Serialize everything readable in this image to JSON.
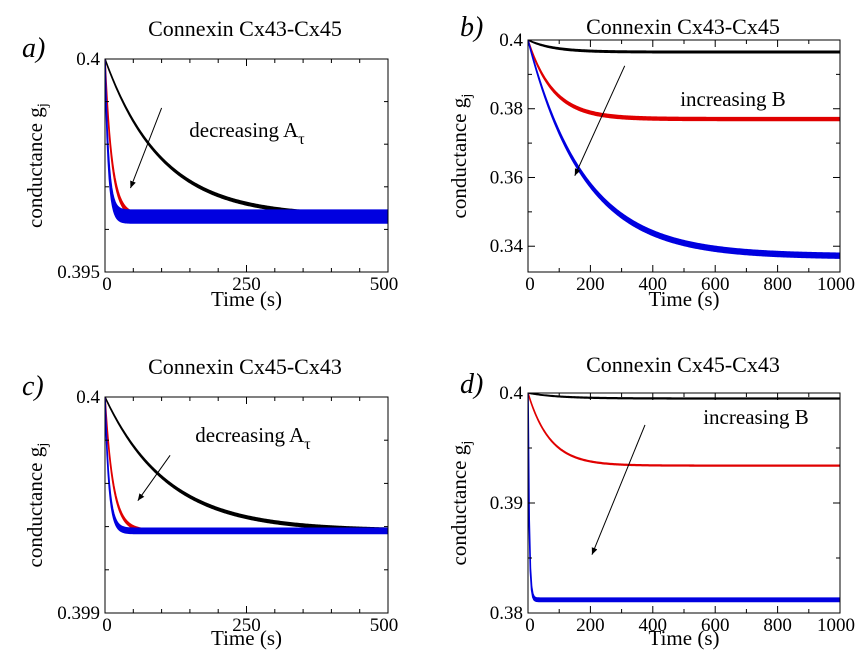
{
  "chart_data": [
    {
      "id": "a",
      "type": "line",
      "panel_label": "a)",
      "title": "Connexin Cx43-Cx45",
      "xlabel": "Time (s)",
      "ylabel": "conductance g",
      "ylabel_sub": "j",
      "xlim": [
        0,
        500
      ],
      "ylim": [
        0.395,
        0.4
      ],
      "xticks": [
        0,
        250,
        500
      ],
      "xtick_labels": [
        "0",
        "250",
        "500"
      ],
      "yticks": [
        0.395,
        0.4
      ],
      "ytick_labels": [
        "0.395",
        "0.4"
      ],
      "annotation": {
        "text": "decreasing A",
        "sub": "τ",
        "arrow_from": [
          100,
          0.39885
        ],
        "arrow_to": [
          45,
          0.39697
        ]
      },
      "series": [
        {
          "color": "#000000",
          "start": 0.4,
          "end": 0.3963,
          "tau": 100,
          "band": 3e-05
        },
        {
          "color": "#e00000",
          "start": 0.4,
          "end": 0.3963,
          "tau": 12,
          "band": 5e-05
        },
        {
          "color": "#0000e0",
          "start": 0.4,
          "end": 0.3963,
          "tau": 6,
          "band": 0.00015
        }
      ]
    },
    {
      "id": "b",
      "type": "line",
      "panel_label": "b)",
      "title": "Connexin Cx43-Cx45",
      "xlabel": "Time (s)",
      "ylabel": "conductance g",
      "ylabel_sub": "j",
      "xlim": [
        0,
        1000
      ],
      "ylim": [
        0.3325,
        0.4
      ],
      "xticks": [
        0,
        200,
        400,
        600,
        800,
        1000
      ],
      "xtick_labels": [
        "0",
        "200",
        "400",
        "600",
        "800",
        "1000"
      ],
      "yticks": [
        0.34,
        0.36,
        0.38,
        0.4
      ],
      "ytick_labels": [
        "0.34",
        "0.36",
        "0.38",
        "0.4"
      ],
      "annotation": {
        "text": "increasing B",
        "arrow_from": [
          310,
          0.3925
        ],
        "arrow_to": [
          150,
          0.3605
        ]
      },
      "series": [
        {
          "color": "#000000",
          "start": 0.4,
          "end": 0.3965,
          "tau": 80,
          "band": 0.0002
        },
        {
          "color": "#e00000",
          "start": 0.4,
          "end": 0.377,
          "tau": 80,
          "band": 0.0004
        },
        {
          "color": "#0000e0",
          "start": 0.4,
          "end": 0.337,
          "tau": 180,
          "band": 0.0007
        }
      ]
    },
    {
      "id": "c",
      "type": "line",
      "panel_label": "c)",
      "title": "Connexin Cx45-Cx43",
      "xlabel": "Time (s)",
      "ylabel": "conductance g",
      "ylabel_sub": "j",
      "xlim": [
        0,
        500
      ],
      "ylim": [
        0.399,
        0.4
      ],
      "xticks": [
        0,
        250,
        500
      ],
      "xtick_labels": [
        "0",
        "250",
        "500"
      ],
      "yticks": [
        0.399,
        0.4
      ],
      "ytick_labels": [
        "0.399",
        "0.4"
      ],
      "annotation": {
        "text": "decreasing A",
        "sub": "τ",
        "arrow_from": [
          115,
          0.39973
        ],
        "arrow_to": [
          58,
          0.39952
        ]
      },
      "series": [
        {
          "color": "#000000",
          "start": 0.4,
          "end": 0.39938,
          "tau": 110,
          "band": 6e-06
        },
        {
          "color": "#e00000",
          "start": 0.4,
          "end": 0.39938,
          "tau": 14,
          "band": 6e-06
        },
        {
          "color": "#0000e0",
          "start": 0.4,
          "end": 0.39938,
          "tau": 7,
          "band": 1.2e-05
        }
      ]
    },
    {
      "id": "d",
      "type": "line",
      "panel_label": "d)",
      "title": "Connexin Cx45-Cx43",
      "xlabel": "Time (s)",
      "ylabel": "conductance g",
      "ylabel_sub": "j",
      "xlim": [
        0,
        1000
      ],
      "ylim": [
        0.38,
        0.4
      ],
      "xticks": [
        0,
        200,
        400,
        600,
        800,
        1000
      ],
      "xtick_labels": [
        "0",
        "200",
        "400",
        "600",
        "800",
        "1000"
      ],
      "yticks": [
        0.38,
        0.39,
        0.4
      ],
      "ytick_labels": [
        "0.38",
        "0.39",
        "0.4"
      ],
      "annotation": {
        "text": "increasing B",
        "arrow_from": [
          375,
          0.3971
        ],
        "arrow_to": [
          205,
          0.3853
        ]
      },
      "series": [
        {
          "color": "#000000",
          "start": 0.4,
          "end": 0.3995,
          "tau": 100,
          "band": 3e-05
        },
        {
          "color": "#e00000",
          "start": 0.4,
          "end": 0.3934,
          "tau": 70,
          "band": 3e-05
        },
        {
          "color": "#0000e0",
          "start": 0.4,
          "end": 0.3812,
          "tau": 4,
          "band": 0.00015
        }
      ]
    }
  ]
}
